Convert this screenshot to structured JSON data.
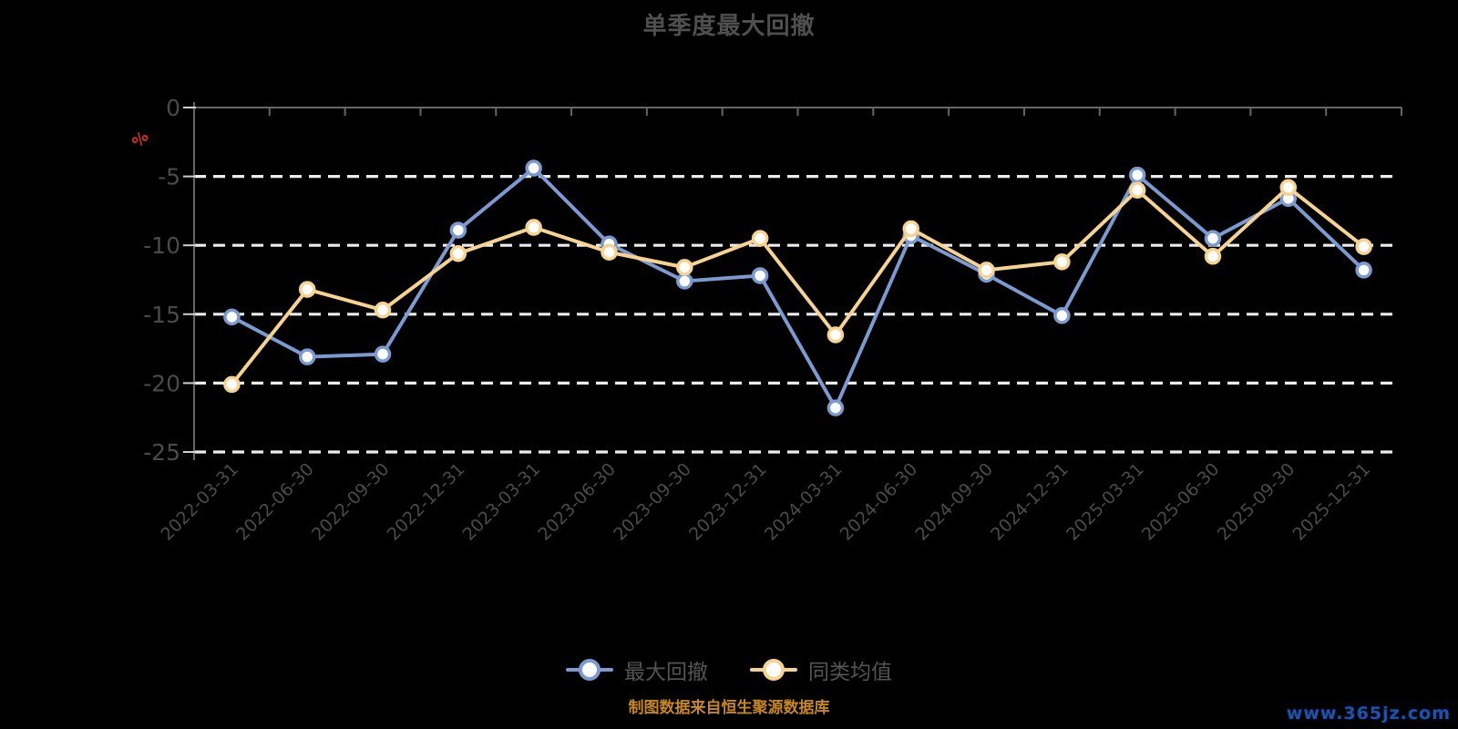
{
  "title": "单季度最大回撤",
  "y_axis": {
    "unit_label": "%",
    "tick_labels": [
      "0",
      "-5",
      "-10",
      "-15",
      "-20",
      "-25"
    ]
  },
  "legend": {
    "items": [
      {
        "label": "最大回撤",
        "color": "#7b9ad1"
      },
      {
        "label": "同类均值",
        "color": "#f6d38f"
      }
    ]
  },
  "footer": {
    "source_note": "制图数据来自恒生聚源数据库",
    "watermark": "www.365jz.com"
  },
  "colors": {
    "background": "#000000",
    "title_text": "#4f4f4f",
    "axis_text": "#4a4a4a",
    "axis_line": "#666666",
    "grid_line": "#ececec",
    "y_tick": "#cfcfcf",
    "unit_label": "#d43030",
    "marker_fill": "#ffffff",
    "series_max_drawdown": "#7b9ad1",
    "series_category_average": "#f6d38f",
    "source_note": "#c8871d",
    "watermark": "#1e54a8"
  },
  "chart_data": {
    "type": "line",
    "title": "单季度最大回撤",
    "categories": [
      "2022-03-31",
      "2022-06-30",
      "2022-09-30",
      "2022-12-31",
      "2023-03-31",
      "2023-06-30",
      "2023-09-30",
      "2023-12-31",
      "2024-03-31",
      "2024-06-30",
      "2024-09-30",
      "2024-12-31",
      "2025-03-31",
      "2025-06-30",
      "2025-09-30",
      "2025-12-31"
    ],
    "series": [
      {
        "name": "最大回撤",
        "color": "#7b9ad1",
        "values": [
          -15.2,
          -18.1,
          -17.9,
          -8.9,
          -4.4,
          -9.9,
          -12.6,
          -12.2,
          -21.8,
          -9.3,
          -12.1,
          -15.1,
          -4.9,
          -9.5,
          -6.6,
          -11.8
        ]
      },
      {
        "name": "同类均值",
        "color": "#f6d38f",
        "values": [
          -20.1,
          -13.2,
          -14.7,
          -10.6,
          -8.7,
          -10.5,
          -11.6,
          -9.5,
          -16.5,
          -8.8,
          -11.8,
          -11.2,
          -6.0,
          -10.8,
          -5.8,
          -10.1
        ]
      }
    ],
    "xlabel": "",
    "ylabel": "%",
    "ylim": [
      -25,
      0
    ],
    "y_ticks": [
      0,
      -5,
      -10,
      -15,
      -20,
      -25
    ],
    "grid": "horizontal-dashed",
    "legend_position": "bottom",
    "x_label_rotation": -45
  }
}
